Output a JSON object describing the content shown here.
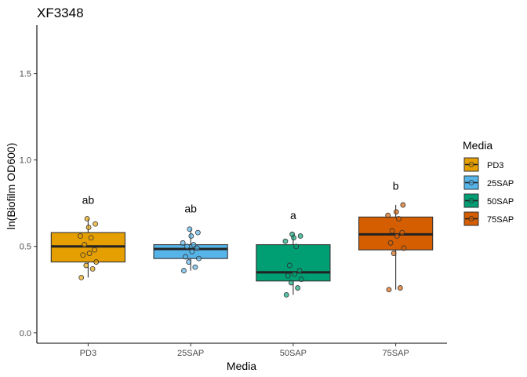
{
  "chart_data": {
    "type": "boxplot",
    "title": "XF3348",
    "xlabel": "Media",
    "ylabel": "ln(Biofilm OD600)",
    "ylim": [
      -0.06,
      1.78
    ],
    "yticks": [
      0.0,
      0.5,
      1.0,
      1.5
    ],
    "ytick_labels": [
      "0.0",
      "0.5",
      "1.0",
      "1.5"
    ],
    "grid": false,
    "legend": {
      "title": "Media",
      "position": "right"
    },
    "categories": [
      "PD3",
      "25SAP",
      "50SAP",
      "75SAP"
    ],
    "colors": [
      "#E69F00",
      "#56B4E9",
      "#009E73",
      "#D55E00"
    ],
    "series": [
      {
        "name": "PD3",
        "box": {
          "min": 0.32,
          "q1": 0.41,
          "median": 0.5,
          "q3": 0.58,
          "max": 0.66
        },
        "points": [
          0.32,
          0.37,
          0.39,
          0.41,
          0.45,
          0.46,
          0.48,
          0.51,
          0.55,
          0.56,
          0.61,
          0.63,
          0.66
        ],
        "significance": "ab",
        "sig_y": 0.77
      },
      {
        "name": "25SAP",
        "box": {
          "min": 0.36,
          "q1": 0.43,
          "median": 0.485,
          "q3": 0.51,
          "max": 0.6
        },
        "points": [
          0.36,
          0.38,
          0.41,
          0.43,
          0.44,
          0.47,
          0.49,
          0.5,
          0.51,
          0.52,
          0.56,
          0.58,
          0.6
        ],
        "significance": "ab",
        "sig_y": 0.72
      },
      {
        "name": "50SAP",
        "box": {
          "min": 0.22,
          "q1": 0.3,
          "median": 0.35,
          "q3": 0.51,
          "max": 0.57
        },
        "points": [
          0.22,
          0.26,
          0.29,
          0.31,
          0.33,
          0.34,
          0.36,
          0.39,
          0.5,
          0.53,
          0.55,
          0.56,
          0.57
        ],
        "significance": "a",
        "sig_y": 0.68
      },
      {
        "name": "75SAP",
        "box": {
          "min": 0.25,
          "q1": 0.48,
          "median": 0.57,
          "q3": 0.67,
          "max": 0.74
        },
        "points": [
          0.25,
          0.26,
          0.46,
          0.49,
          0.52,
          0.56,
          0.58,
          0.59,
          0.66,
          0.68,
          0.7,
          0.74
        ],
        "significance": "b",
        "sig_y": 0.85
      }
    ]
  }
}
